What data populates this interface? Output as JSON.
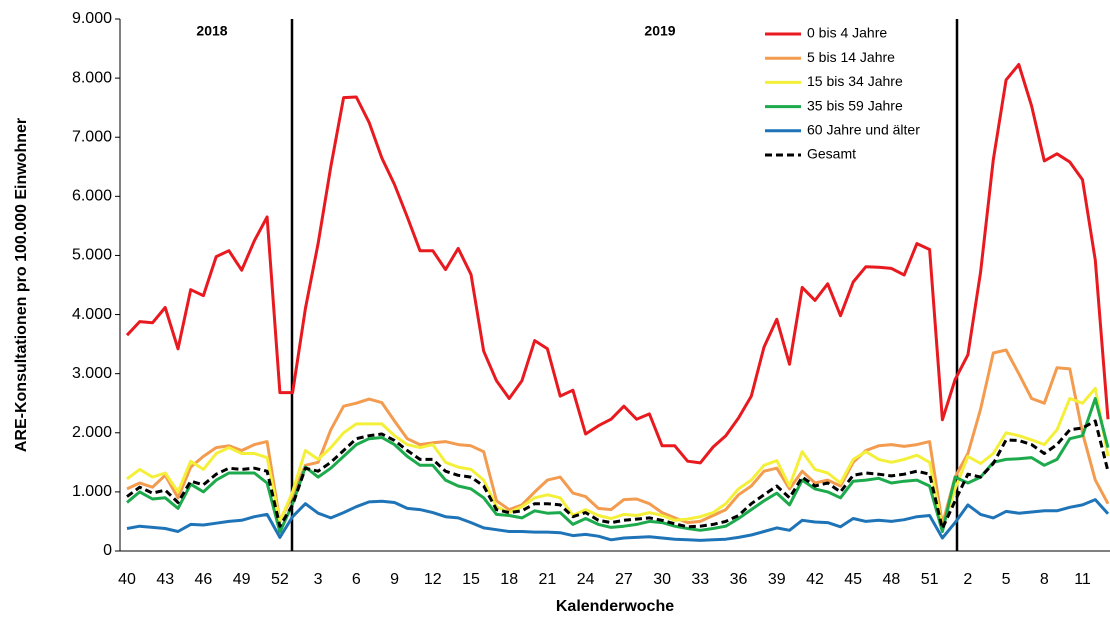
{
  "chart_data": {
    "type": "line",
    "y_label": "ARE-Konsultationen pro 100.000 Einwohner",
    "x_label": "Kalenderwoche",
    "annotations": [
      "2018",
      "2019"
    ],
    "legend": "upper right",
    "categories": [
      "40",
      null,
      null,
      "43",
      null,
      null,
      "46",
      null,
      null,
      "49",
      null,
      null,
      "52",
      null,
      null,
      "3",
      null,
      null,
      "6",
      null,
      null,
      "9",
      null,
      null,
      "12",
      null,
      null,
      "15",
      null,
      null,
      "18",
      null,
      null,
      "21",
      null,
      null,
      "24",
      null,
      null,
      "27",
      null,
      null,
      "30",
      null,
      null,
      "33",
      null,
      null,
      "36",
      null,
      null,
      "39",
      null,
      null,
      "42",
      null,
      null,
      "45",
      null,
      null,
      "48",
      null,
      null,
      "51",
      null,
      null,
      "2",
      null,
      null,
      "5",
      null,
      null,
      "8",
      null,
      null,
      "11",
      null,
      null
    ],
    "ylim": [
      0,
      9000
    ],
    "yticks": [
      0,
      {
        "value": 1000,
        "label": "1.000"
      },
      {
        "value": 2000,
        "label": "2.000"
      },
      {
        "value": 3000,
        "label": "3.000"
      },
      {
        "value": 4000,
        "label": "4.000"
      },
      {
        "value": 5000,
        "label": "5.000"
      },
      {
        "value": 6000,
        "label": "6.000"
      },
      {
        "value": 7000,
        "label": "7.000"
      },
      {
        "value": 8000,
        "label": "8.000"
      },
      {
        "value": 9000,
        "label": "9.000"
      }
    ],
    "grid": false,
    "series": [
      {
        "name": "0 bis 4 Jahre",
        "color": "#e8191f",
        "dashed": false,
        "values": [
          3650,
          3880,
          3860,
          4120,
          3420,
          4420,
          4320,
          4980,
          5080,
          4750,
          5250,
          5650,
          2680,
          2680,
          4100,
          5200,
          6500,
          7670,
          7680,
          7250,
          6650,
          6200,
          5650,
          5080,
          5080,
          4760,
          5120,
          4680,
          3380,
          2880,
          2580,
          2880,
          3560,
          3420,
          2620,
          2720,
          1980,
          2120,
          2230,
          2450,
          2230,
          2320,
          1780,
          1780,
          1520,
          1490,
          1760,
          1950,
          2250,
          2620,
          3450,
          3920,
          3160,
          4460,
          4240,
          4520,
          3980,
          4550,
          4810,
          4800,
          4780,
          4670,
          5200,
          5100,
          2220,
          2900,
          3320,
          4720,
          6620,
          7970,
          8230,
          7530,
          6600,
          6720,
          6580,
          6280,
          4920,
          2230
        ]
      },
      {
        "name": "5 bis 14 Jahre",
        "color": "#f39b4f",
        "dashed": false,
        "values": [
          1050,
          1150,
          1080,
          1280,
          900,
          1420,
          1600,
          1750,
          1780,
          1700,
          1800,
          1850,
          500,
          950,
          1450,
          1500,
          2050,
          2450,
          2500,
          2570,
          2510,
          2200,
          1900,
          1800,
          1830,
          1850,
          1800,
          1780,
          1680,
          850,
          700,
          780,
          1000,
          1200,
          1250,
          980,
          920,
          720,
          700,
          870,
          880,
          800,
          650,
          560,
          480,
          500,
          600,
          700,
          950,
          1100,
          1350,
          1400,
          1050,
          1350,
          1150,
          1200,
          1100,
          1500,
          1700,
          1780,
          1800,
          1770,
          1800,
          1850,
          450,
          1250,
          1650,
          2400,
          3350,
          3400,
          3000,
          2580,
          2500,
          3100,
          3080,
          2000,
          1200,
          800
        ]
      },
      {
        "name": "15 bis 34 Jahre",
        "color": "#f4f03a",
        "dashed": false,
        "values": [
          1220,
          1380,
          1250,
          1320,
          1000,
          1520,
          1380,
          1650,
          1750,
          1650,
          1650,
          1580,
          500,
          1000,
          1700,
          1550,
          1750,
          2000,
          2150,
          2150,
          2150,
          1950,
          1800,
          1750,
          1800,
          1500,
          1420,
          1380,
          1200,
          750,
          650,
          750,
          900,
          950,
          900,
          600,
          700,
          600,
          550,
          620,
          600,
          650,
          600,
          520,
          540,
          580,
          650,
          800,
          1050,
          1200,
          1450,
          1530,
          1100,
          1680,
          1380,
          1320,
          1150,
          1550,
          1680,
          1550,
          1500,
          1550,
          1620,
          1500,
          400,
          1050,
          1600,
          1480,
          1650,
          2000,
          1950,
          1880,
          1800,
          2050,
          2580,
          2500,
          2750,
          1600
        ]
      },
      {
        "name": "35 bis 59 Jahre",
        "color": "#1daa4c",
        "dashed": false,
        "values": [
          820,
          1000,
          880,
          900,
          720,
          1130,
          1000,
          1200,
          1320,
          1320,
          1320,
          1150,
          320,
          800,
          1420,
          1250,
          1400,
          1600,
          1800,
          1900,
          1920,
          1800,
          1600,
          1450,
          1450,
          1200,
          1100,
          1050,
          900,
          620,
          600,
          560,
          680,
          640,
          650,
          450,
          550,
          450,
          400,
          420,
          450,
          500,
          480,
          420,
          380,
          350,
          380,
          420,
          550,
          700,
          850,
          980,
          780,
          1200,
          1050,
          1000,
          900,
          1180,
          1200,
          1230,
          1150,
          1180,
          1200,
          1100,
          330,
          1250,
          1150,
          1250,
          1500,
          1550,
          1560,
          1580,
          1450,
          1550,
          1900,
          1950,
          2580,
          1750
        ]
      },
      {
        "name": "60 Jahre und älter",
        "color": "#1f74b8",
        "dashed": false,
        "values": [
          380,
          420,
          400,
          380,
          330,
          450,
          440,
          470,
          500,
          520,
          580,
          620,
          230,
          580,
          800,
          640,
          560,
          650,
          750,
          830,
          840,
          820,
          720,
          700,
          650,
          580,
          560,
          480,
          390,
          360,
          330,
          330,
          320,
          320,
          310,
          260,
          280,
          250,
          190,
          220,
          230,
          240,
          220,
          200,
          190,
          180,
          190,
          200,
          230,
          270,
          330,
          390,
          350,
          520,
          490,
          480,
          410,
          550,
          500,
          520,
          500,
          530,
          580,
          600,
          220,
          480,
          780,
          620,
          560,
          670,
          640,
          660,
          680,
          680,
          740,
          780,
          870,
          630
        ]
      },
      {
        "name": "Gesamt",
        "color": "#000000",
        "dashed": true,
        "values": [
          920,
          1080,
          980,
          1030,
          820,
          1180,
          1120,
          1300,
          1400,
          1380,
          1400,
          1350,
          420,
          780,
          1400,
          1350,
          1500,
          1700,
          1900,
          1950,
          1980,
          1870,
          1700,
          1550,
          1550,
          1350,
          1280,
          1250,
          1100,
          700,
          650,
          680,
          800,
          800,
          780,
          580,
          650,
          520,
          480,
          520,
          540,
          560,
          520,
          460,
          410,
          420,
          450,
          500,
          600,
          800,
          950,
          1100,
          900,
          1250,
          1100,
          1150,
          1000,
          1280,
          1320,
          1300,
          1270,
          1300,
          1350,
          1300,
          380,
          850,
          1300,
          1250,
          1480,
          1880,
          1870,
          1800,
          1650,
          1800,
          2050,
          2080,
          2200,
          1350
        ]
      }
    ]
  }
}
